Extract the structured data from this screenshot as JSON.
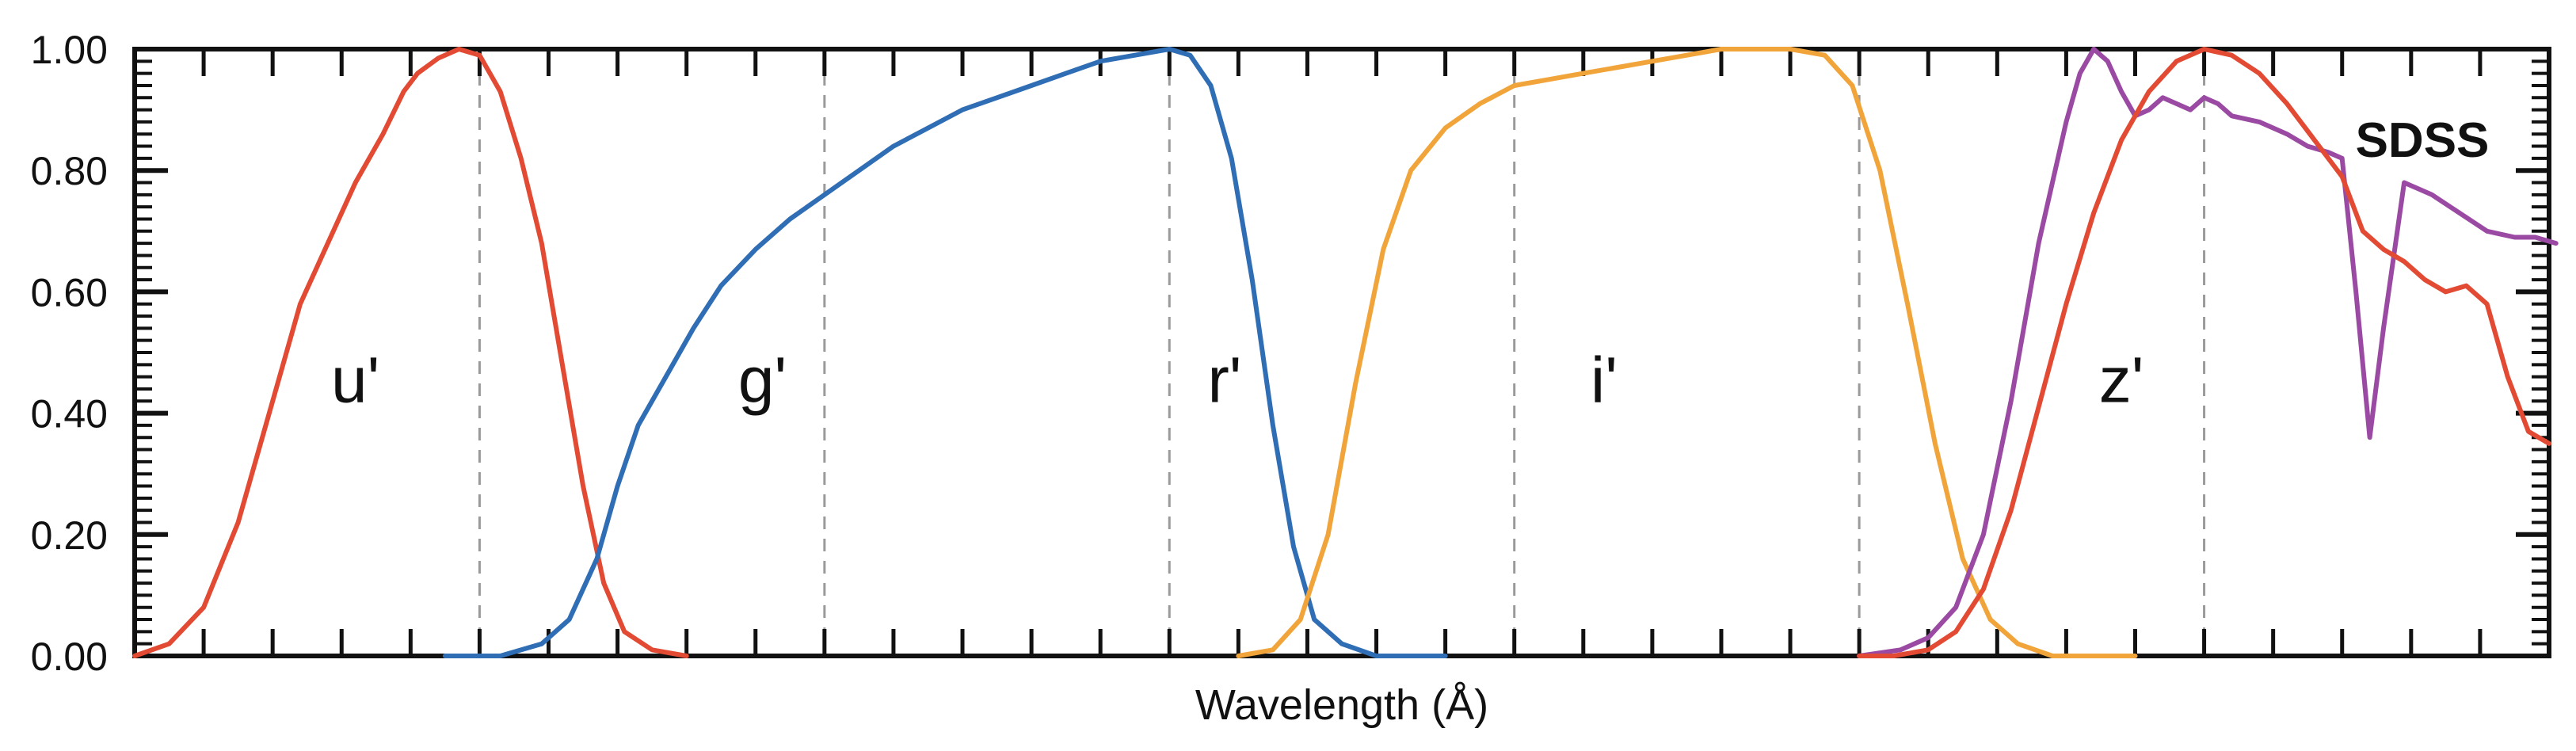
{
  "chart_data": {
    "type": "line",
    "title": "",
    "badge": "SDSS",
    "xlabel": "Wavelength (Å)",
    "ylabel": "",
    "xlim": [
      0,
      35
    ],
    "ylim": [
      0,
      1
    ],
    "yticks": [
      "0.00",
      "0.20",
      "0.40",
      "0.60",
      "0.80",
      "1.00"
    ],
    "ytick_values": [
      0,
      0.2,
      0.4,
      0.6,
      0.8,
      1.0
    ],
    "grid": false,
    "vlines": [
      5,
      10,
      15,
      20,
      25,
      30
    ],
    "series": [
      {
        "name": "u'",
        "color": "#e24a33",
        "points": [
          [
            0,
            0.0
          ],
          [
            0.5,
            0.02
          ],
          [
            1.0,
            0.08
          ],
          [
            1.5,
            0.22
          ],
          [
            2.0,
            0.42
          ],
          [
            2.4,
            0.58
          ],
          [
            2.8,
            0.68
          ],
          [
            3.2,
            0.78
          ],
          [
            3.6,
            0.86
          ],
          [
            3.9,
            0.93
          ],
          [
            4.1,
            0.96
          ],
          [
            4.4,
            0.985
          ],
          [
            4.7,
            1.0
          ],
          [
            5.0,
            0.99
          ],
          [
            5.3,
            0.93
          ],
          [
            5.6,
            0.82
          ],
          [
            5.9,
            0.68
          ],
          [
            6.2,
            0.48
          ],
          [
            6.5,
            0.28
          ],
          [
            6.8,
            0.12
          ],
          [
            7.1,
            0.04
          ],
          [
            7.5,
            0.01
          ],
          [
            8.0,
            0.0
          ]
        ]
      },
      {
        "name": "g'",
        "color": "#2f6db5",
        "points": [
          [
            4.5,
            0.0
          ],
          [
            5.3,
            0.0
          ],
          [
            5.9,
            0.02
          ],
          [
            6.3,
            0.06
          ],
          [
            6.7,
            0.16
          ],
          [
            7.0,
            0.28
          ],
          [
            7.3,
            0.38
          ],
          [
            7.7,
            0.46
          ],
          [
            8.1,
            0.54
          ],
          [
            8.5,
            0.61
          ],
          [
            9.0,
            0.67
          ],
          [
            9.5,
            0.72
          ],
          [
            10.0,
            0.76
          ],
          [
            10.5,
            0.8
          ],
          [
            11.0,
            0.84
          ],
          [
            11.5,
            0.87
          ],
          [
            12.0,
            0.9
          ],
          [
            12.5,
            0.92
          ],
          [
            13.0,
            0.94
          ],
          [
            13.5,
            0.96
          ],
          [
            14.0,
            0.98
          ],
          [
            14.5,
            0.99
          ],
          [
            15.0,
            1.0
          ],
          [
            15.3,
            0.99
          ],
          [
            15.6,
            0.94
          ],
          [
            15.9,
            0.82
          ],
          [
            16.2,
            0.62
          ],
          [
            16.5,
            0.38
          ],
          [
            16.8,
            0.18
          ],
          [
            17.1,
            0.06
          ],
          [
            17.5,
            0.02
          ],
          [
            18.0,
            0.0
          ],
          [
            19.0,
            0.0
          ]
        ]
      },
      {
        "name": "r'",
        "color": "#f0a43a",
        "points": [
          [
            16.0,
            0.0
          ],
          [
            16.5,
            0.01
          ],
          [
            16.9,
            0.06
          ],
          [
            17.3,
            0.2
          ],
          [
            17.7,
            0.45
          ],
          [
            18.1,
            0.67
          ],
          [
            18.5,
            0.8
          ],
          [
            19.0,
            0.87
          ],
          [
            19.5,
            0.91
          ],
          [
            20.0,
            0.94
          ],
          [
            20.5,
            0.95
          ],
          [
            21.0,
            0.96
          ],
          [
            21.5,
            0.97
          ],
          [
            22.0,
            0.98
          ],
          [
            22.5,
            0.99
          ],
          [
            23.0,
            1.0
          ],
          [
            23.5,
            1.0
          ],
          [
            24.0,
            1.0
          ],
          [
            24.5,
            0.99
          ],
          [
            24.9,
            0.94
          ],
          [
            25.3,
            0.8
          ],
          [
            25.7,
            0.58
          ],
          [
            26.1,
            0.35
          ],
          [
            26.5,
            0.16
          ],
          [
            26.9,
            0.06
          ],
          [
            27.3,
            0.02
          ],
          [
            27.8,
            0.0
          ],
          [
            29.0,
            0.0
          ]
        ]
      },
      {
        "name": "i'",
        "color": "#9b4aa3",
        "points": [
          [
            25.0,
            0.0
          ],
          [
            25.6,
            0.01
          ],
          [
            26.0,
            0.03
          ],
          [
            26.4,
            0.08
          ],
          [
            26.8,
            0.2
          ],
          [
            27.2,
            0.42
          ],
          [
            27.6,
            0.68
          ],
          [
            28.0,
            0.88
          ],
          [
            28.2,
            0.96
          ],
          [
            28.4,
            1.0
          ],
          [
            28.6,
            0.98
          ],
          [
            28.8,
            0.93
          ],
          [
            29.0,
            0.89
          ],
          [
            29.2,
            0.9
          ],
          [
            29.4,
            0.92
          ],
          [
            29.6,
            0.91
          ],
          [
            29.8,
            0.9
          ],
          [
            30.0,
            0.92
          ],
          [
            30.2,
            0.91
          ],
          [
            30.4,
            0.89
          ],
          [
            30.8,
            0.88
          ],
          [
            31.2,
            0.86
          ],
          [
            31.5,
            0.84
          ],
          [
            31.8,
            0.83
          ],
          [
            32.0,
            0.82
          ],
          [
            32.2,
            0.6
          ],
          [
            32.4,
            0.36
          ],
          [
            32.6,
            0.54
          ],
          [
            32.9,
            0.78
          ],
          [
            33.3,
            0.76
          ],
          [
            33.7,
            0.73
          ],
          [
            34.1,
            0.7
          ],
          [
            34.5,
            0.69
          ],
          [
            34.8,
            0.69
          ],
          [
            35.1,
            0.68
          ]
        ]
      },
      {
        "name": "z'",
        "color": "#e24a33",
        "points": [],
        "note": ""
      }
    ]
  },
  "labels": [
    {
      "text": "u'",
      "x": 3.2,
      "y": 0.45
    },
    {
      "text": "g'",
      "x": 9.1,
      "y": 0.45
    },
    {
      "text": "r'",
      "x": 15.8,
      "y": 0.45
    },
    {
      "text": "i'",
      "x": 21.3,
      "y": 0.45
    },
    {
      "text": "z'",
      "x": 28.8,
      "y": 0.45
    }
  ]
}
